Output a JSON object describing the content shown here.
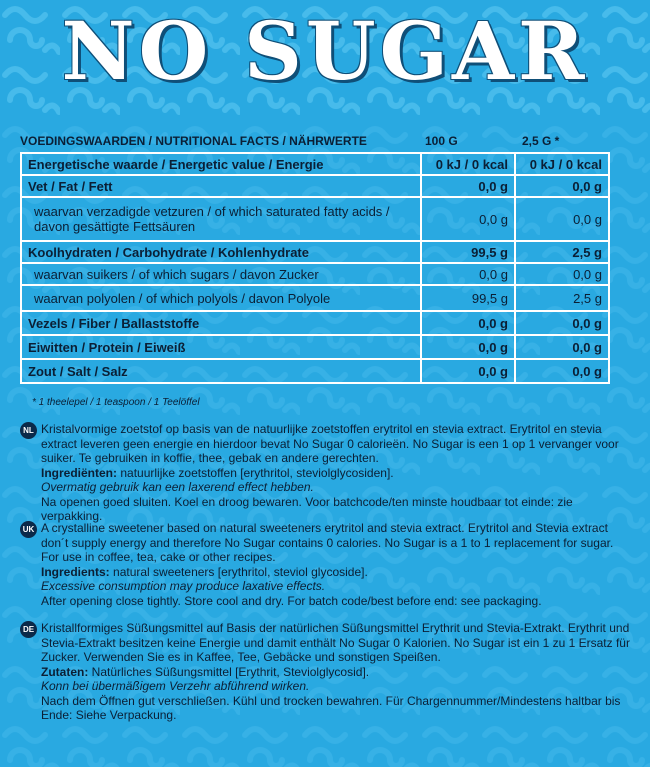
{
  "title": "NO SUGAR",
  "table": {
    "header": {
      "label": "VOEDINGSWAARDEN / NUTRITIONAL FACTS / NÄHRWERTE",
      "col1": "100 G",
      "col2": "2,5 G *"
    },
    "rows": [
      {
        "label": "Energetische waarde / Energetic value / Energie",
        "v1": "0 kJ / 0 kcal",
        "v2": "0 kJ / 0 kcal",
        "bold": true
      },
      {
        "label": "Vet / Fat / Fett",
        "v1": "0,0 g",
        "v2": "0,0 g",
        "bold": true
      },
      {
        "label": "waarvan verzadigde vetzuren / of which saturated fatty acids / davon gesättigte Fettsäuren",
        "v1": "0,0 g",
        "v2": "0,0 g",
        "bold": false
      },
      {
        "label": "Koolhydraten / Carbohydrate / Kohlenhydrate",
        "v1": "99,5 g",
        "v2": "2,5 g",
        "bold": true
      },
      {
        "label": "waarvan suikers / of which sugars / davon Zucker",
        "v1": "0,0 g",
        "v2": "0,0 g",
        "bold": false
      },
      {
        "label": "waarvan polyolen / of which polyols / davon Polyole",
        "v1": "99,5 g",
        "v2": "2,5 g",
        "bold": false
      },
      {
        "label": "Vezels / Fiber / Ballaststoffe",
        "v1": "0,0 g",
        "v2": "0,0 g",
        "bold": true
      },
      {
        "label": "Eiwitten / Protein / Eiweiß",
        "v1": "0,0 g",
        "v2": "0,0 g",
        "bold": true
      },
      {
        "label": "Zout / Salt / Salz",
        "v1": "0,0 g",
        "v2": "0,0 g",
        "bold": true
      }
    ],
    "footnote": "* 1 theelepel / 1 teaspoon / 1 Teelöffel"
  },
  "languages": {
    "nl": {
      "code": "NL",
      "desc": "Kristalvormige zoetstof op basis van de natuurlijke zoetstoffen erytritol en stevia extract. Erytritol en stevia extract leveren geen energie en hierdoor bevat No Sugar 0 calorieën. No Sugar is een 1 op 1 vervanger voor suiker. Te gebruiken in koffie, thee, gebak en andere gerechten.",
      "ingr_label": "Ingrediënten:",
      "ingr": "natuurlijke zoetstoffen [erythritol, steviolglycosiden].",
      "warning": "Overmatig gebruik kan een laxerend effect hebben.",
      "storage": "Na openen goed sluiten. Koel en droog bewaren. Voor batchcode/ten minste houdbaar tot einde: zie verpakking."
    },
    "uk": {
      "code": "UK",
      "desc": "A crystalline sweetener based on natural sweeteners erytritol and stevia extract. Erytritol and Stevia extract don´t supply energy and therefore No Sugar contains 0 calories. No Sugar is a 1 to 1 replacement for sugar. For use in coffee, tea, cake or other recipes.",
      "ingr_label": "Ingredients:",
      "ingr": "natural sweeteners [erythritol, steviol glycoside].",
      "warning": "Excessive consumption may produce laxative effects.",
      "storage": "After opening close tightly. Store cool and dry. For batch code/best before end: see packaging."
    },
    "de": {
      "code": "DE",
      "desc": "Kristallformiges Süßungsmittel auf Basis der natürlichen Süßungsmittel Erythrit und Stevia-Extrakt. Erythrit und Stevia-Extrakt besitzen keine Energie und damit enthält No Sugar 0 Kalorien. No Sugar ist ein 1 zu 1 Ersatz für Zucker. Verwenden Sie es in Kaffee, Tee, Gebäcke und sonstigen Speißen.",
      "ingr_label": "Zutaten:",
      "ingr": "Natürliches Süßungsmittel [Erythrit, Steviolglycosid].",
      "warning": "Konn bei übermäßigem Verzehr abführend wirken.",
      "storage": "Nach dem Öffnen gut verschließen. Kühl und trocken bewahren. Für Chargennummer/Mindestens haltbar bis Ende: Siehe Verpackung."
    }
  }
}
